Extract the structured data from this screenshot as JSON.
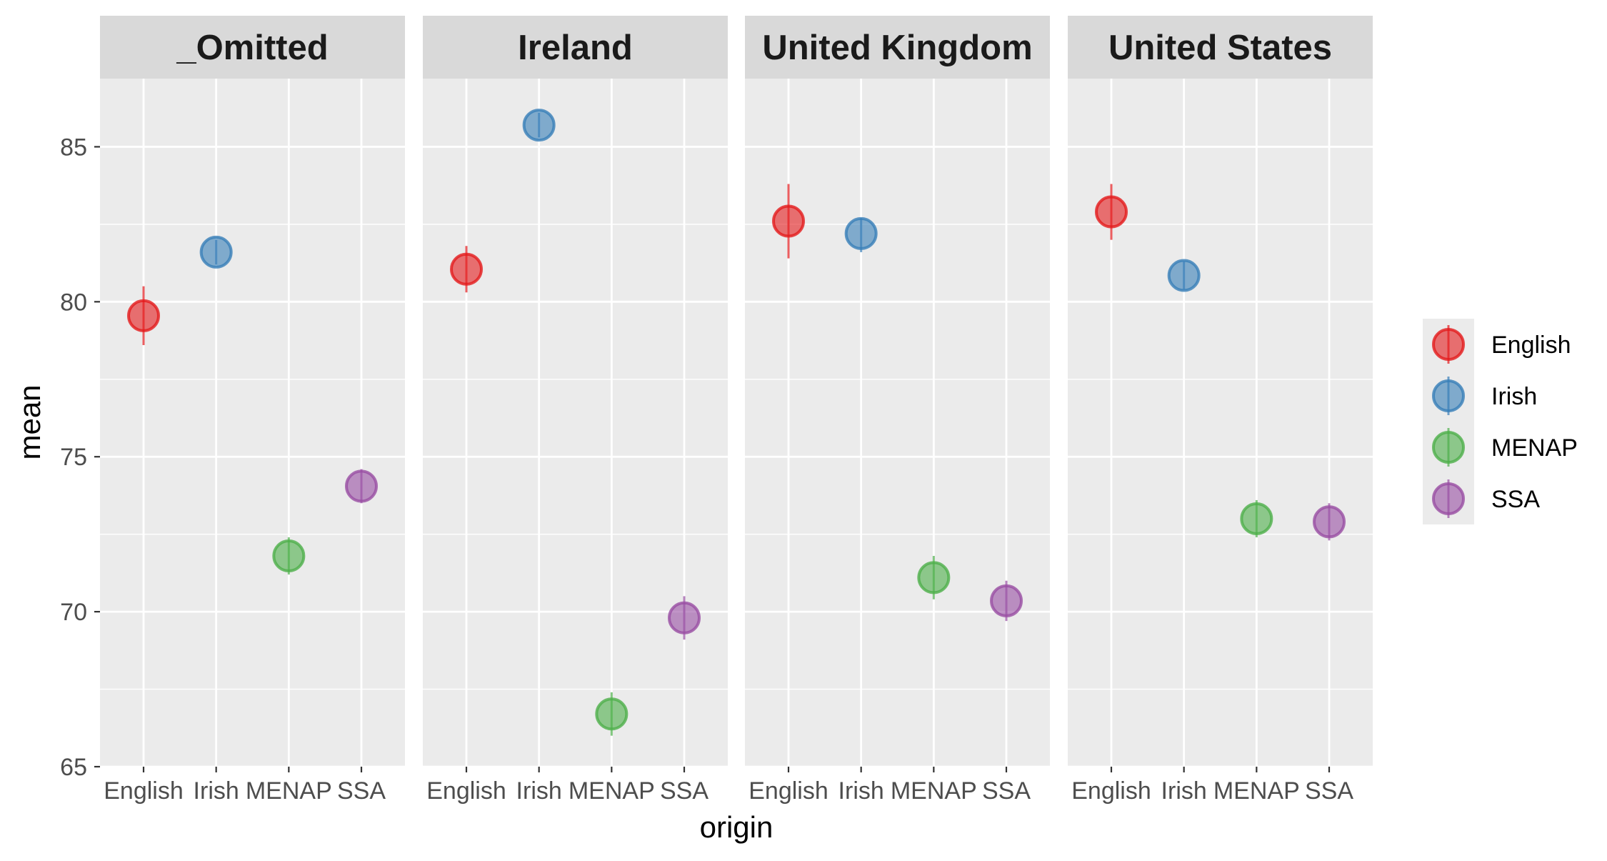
{
  "chart_data": {
    "type": "scatter",
    "xlabel": "origin",
    "ylabel": "mean",
    "ylim": [
      65,
      87.2
    ],
    "y_ticks": [
      65,
      70,
      75,
      80,
      85
    ],
    "grid": true,
    "legend_position": "right",
    "categories": [
      "English",
      "Irish",
      "MENAP",
      "SSA"
    ],
    "legend": [
      {
        "label": "English",
        "color": "#E41A1C"
      },
      {
        "label": "Irish",
        "color": "#377EB8"
      },
      {
        "label": "MENAP",
        "color": "#4DAF4A"
      },
      {
        "label": "SSA",
        "color": "#984EA3"
      }
    ],
    "panels": [
      {
        "title": "_Omitted",
        "points": [
          {
            "origin": "English",
            "mean": 79.55,
            "low": 78.6,
            "high": 80.5
          },
          {
            "origin": "Irish",
            "mean": 81.6,
            "low": 81.2,
            "high": 82.0
          },
          {
            "origin": "MENAP",
            "mean": 71.8,
            "low": 71.2,
            "high": 72.4
          },
          {
            "origin": "SSA",
            "mean": 74.05,
            "low": 73.5,
            "high": 74.6
          }
        ]
      },
      {
        "title": "Ireland",
        "points": [
          {
            "origin": "English",
            "mean": 81.05,
            "low": 80.3,
            "high": 81.8
          },
          {
            "origin": "Irish",
            "mean": 85.7,
            "low": 85.3,
            "high": 86.1
          },
          {
            "origin": "MENAP",
            "mean": 66.7,
            "low": 66.0,
            "high": 67.4
          },
          {
            "origin": "SSA",
            "mean": 69.8,
            "low": 69.1,
            "high": 70.5
          }
        ]
      },
      {
        "title": "United Kingdom",
        "points": [
          {
            "origin": "English",
            "mean": 82.6,
            "low": 81.4,
            "high": 83.8
          },
          {
            "origin": "Irish",
            "mean": 82.2,
            "low": 81.6,
            "high": 82.7
          },
          {
            "origin": "MENAP",
            "mean": 71.1,
            "low": 70.4,
            "high": 71.8
          },
          {
            "origin": "SSA",
            "mean": 70.35,
            "low": 69.7,
            "high": 71.0
          }
        ]
      },
      {
        "title": "United States",
        "points": [
          {
            "origin": "English",
            "mean": 82.9,
            "low": 82.0,
            "high": 83.8
          },
          {
            "origin": "Irish",
            "mean": 80.85,
            "low": 80.4,
            "high": 81.3
          },
          {
            "origin": "MENAP",
            "mean": 73.0,
            "low": 72.4,
            "high": 73.6
          },
          {
            "origin": "SSA",
            "mean": 72.9,
            "low": 72.3,
            "high": 73.5
          }
        ]
      }
    ]
  }
}
